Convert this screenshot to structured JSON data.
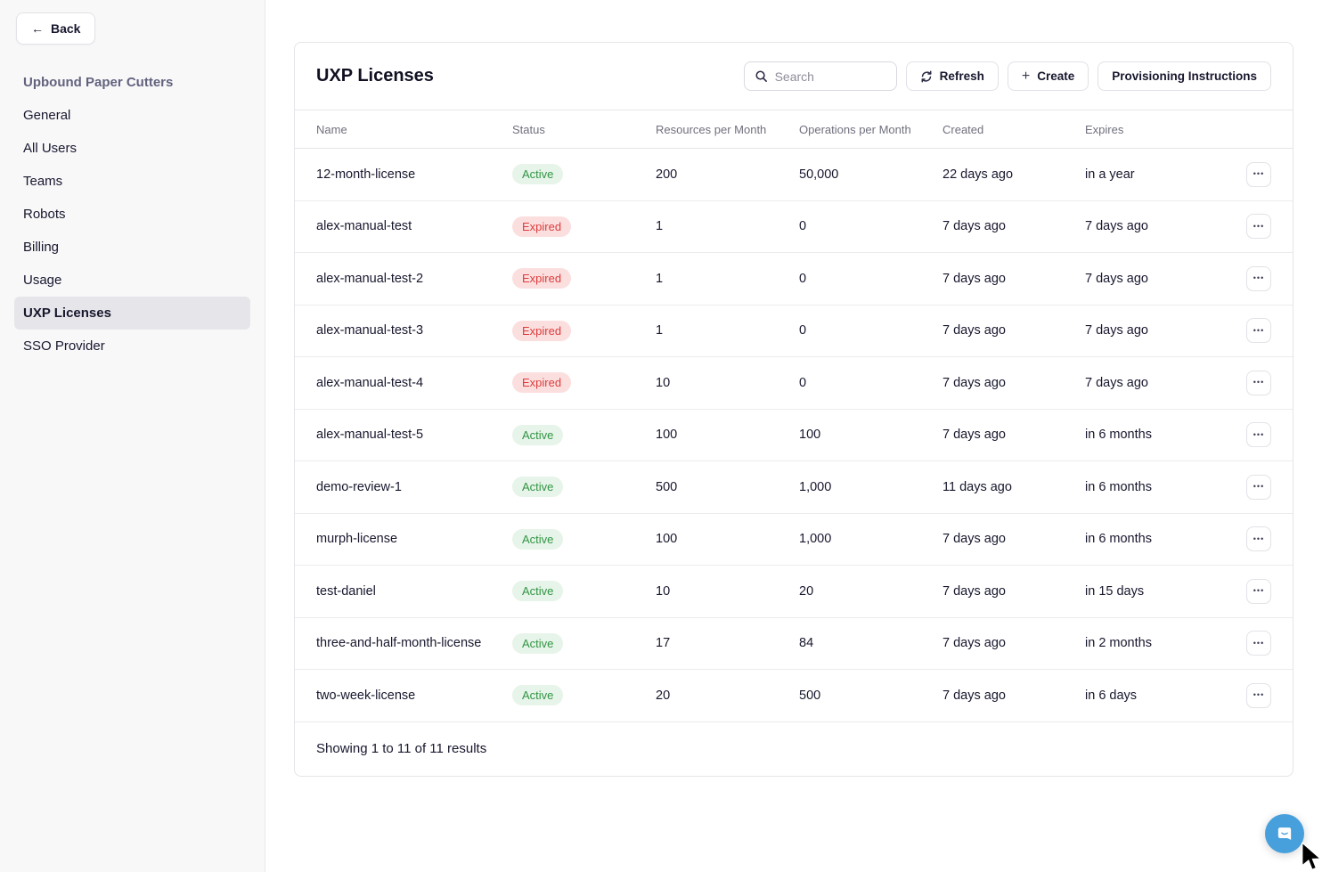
{
  "sidebar": {
    "back_label": "Back",
    "org_name": "Upbound Paper Cutters",
    "items": [
      {
        "label": "General",
        "active": false
      },
      {
        "label": "All Users",
        "active": false
      },
      {
        "label": "Teams",
        "active": false
      },
      {
        "label": "Robots",
        "active": false
      },
      {
        "label": "Billing",
        "active": false
      },
      {
        "label": "Usage",
        "active": false
      },
      {
        "label": "UXP Licenses",
        "active": true
      },
      {
        "label": "SSO Provider",
        "active": false
      }
    ]
  },
  "header": {
    "title": "UXP Licenses",
    "search_placeholder": "Search",
    "refresh_label": "Refresh",
    "create_label": "Create",
    "provisioning_label": "Provisioning Instructions"
  },
  "table": {
    "columns": [
      "Name",
      "Status",
      "Resources per Month",
      "Operations per Month",
      "Created",
      "Expires"
    ],
    "rows": [
      {
        "name": "12-month-license",
        "status": "Active",
        "resources": "200",
        "operations": "50,000",
        "created": "22 days ago",
        "expires": "in a year"
      },
      {
        "name": "alex-manual-test",
        "status": "Expired",
        "resources": "1",
        "operations": "0",
        "created": "7 days ago",
        "expires": "7 days ago"
      },
      {
        "name": "alex-manual-test-2",
        "status": "Expired",
        "resources": "1",
        "operations": "0",
        "created": "7 days ago",
        "expires": "7 days ago"
      },
      {
        "name": "alex-manual-test-3",
        "status": "Expired",
        "resources": "1",
        "operations": "0",
        "created": "7 days ago",
        "expires": "7 days ago"
      },
      {
        "name": "alex-manual-test-4",
        "status": "Expired",
        "resources": "10",
        "operations": "0",
        "created": "7 days ago",
        "expires": "7 days ago"
      },
      {
        "name": "alex-manual-test-5",
        "status": "Active",
        "resources": "100",
        "operations": "100",
        "created": "7 days ago",
        "expires": "in 6 months"
      },
      {
        "name": "demo-review-1",
        "status": "Active",
        "resources": "500",
        "operations": "1,000",
        "created": "11 days ago",
        "expires": "in 6 months"
      },
      {
        "name": "murph-license",
        "status": "Active",
        "resources": "100",
        "operations": "1,000",
        "created": "7 days ago",
        "expires": "in 6 months"
      },
      {
        "name": "test-daniel",
        "status": "Active",
        "resources": "10",
        "operations": "20",
        "created": "7 days ago",
        "expires": "in 15 days"
      },
      {
        "name": "three-and-half-month-license",
        "status": "Active",
        "resources": "17",
        "operations": "84",
        "created": "7 days ago",
        "expires": "in 2 months"
      },
      {
        "name": "two-week-license",
        "status": "Active",
        "resources": "20",
        "operations": "500",
        "created": "7 days ago",
        "expires": "in 6 days"
      }
    ],
    "footer": "Showing 1 to 11 of 11 results"
  },
  "icons": {
    "back_arrow": "←",
    "plus": "+",
    "ellipsis": "•••",
    "search": "search-icon",
    "refresh": "refresh-icon",
    "row_menu": "ellipsis-icon",
    "chat": "chat-bubble-icon"
  },
  "colors": {
    "sidebar_bg": "#f8f8f9",
    "active_nav_bg": "#e6e6ea",
    "org_name_text": "#62627e",
    "status_active_bg": "#e7f4e9",
    "status_active_text": "#319544",
    "status_expired_bg": "#fbdfdf",
    "status_expired_text": "#dd3c3c",
    "chat_fab_blue": "#47a0dc"
  }
}
